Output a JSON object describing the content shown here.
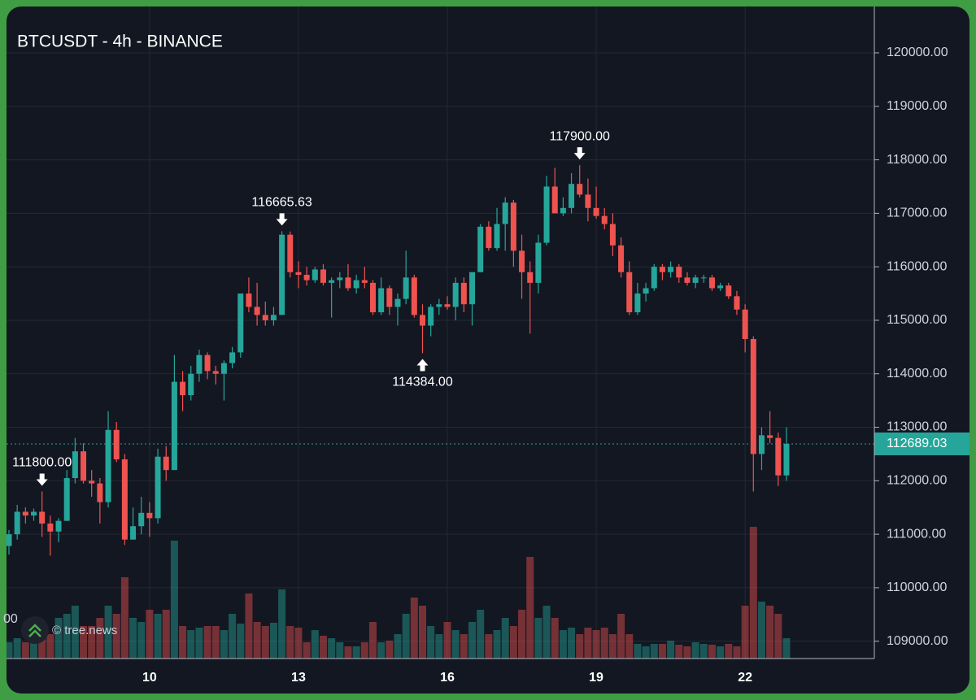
{
  "chart_data": {
    "type": "candlestick",
    "title": "BTCUSDT - 4h - BINANCE",
    "watermark": "© tree.news",
    "edge_fragment": "00",
    "categories": [
      null,
      null,
      null,
      null,
      null,
      null,
      null,
      null,
      null,
      null,
      null,
      null,
      null,
      null,
      null,
      null,
      null,
      "10",
      null,
      null,
      null,
      null,
      null,
      null,
      null,
      null,
      null,
      null,
      null,
      null,
      null,
      null,
      null,
      null,
      null,
      "13",
      null,
      null,
      null,
      null,
      null,
      null,
      null,
      null,
      null,
      null,
      null,
      null,
      null,
      null,
      null,
      null,
      null,
      "16",
      null,
      null,
      null,
      null,
      null,
      null,
      null,
      null,
      null,
      null,
      null,
      null,
      null,
      null,
      null,
      null,
      null,
      "19",
      null,
      null,
      null,
      null,
      null,
      null,
      null,
      null,
      null,
      null,
      null,
      null,
      null,
      null,
      null,
      null,
      null,
      "22",
      null,
      null,
      null,
      null,
      null
    ],
    "open": [
      110780,
      111000,
      111420,
      111350,
      111420,
      111200,
      111050,
      111250,
      112050,
      112550,
      112000,
      111950,
      111600,
      112950,
      112400,
      110900,
      111150,
      111400,
      111300,
      112450,
      112200,
      113850,
      113600,
      114000,
      114350,
      114050,
      114000,
      114200,
      114400,
      115500,
      115250,
      115100,
      115000,
      115100,
      116600,
      115900,
      115850,
      115750,
      115950,
      115700,
      115750,
      115800,
      115600,
      115750,
      115700,
      115150,
      115600,
      115250,
      115400,
      115800,
      115100,
      114900,
      115250,
      115300,
      115250,
      115700,
      115300,
      115900,
      116750,
      116350,
      116800,
      117200,
      116300,
      115900,
      115700,
      116450,
      117500,
      117000,
      117100,
      117550,
      117350,
      117100,
      116950,
      116800,
      116400,
      115900,
      115150,
      115500,
      115600,
      116000,
      115900,
      116000,
      115800,
      115700,
      115800,
      115800,
      115600,
      115650,
      115450,
      115200,
      114650,
      112500,
      112850,
      112800,
      112100
    ],
    "high": [
      111080,
      111550,
      111500,
      111480,
      111800,
      111350,
      111300,
      112200,
      112800,
      112700,
      112200,
      112050,
      113300,
      113100,
      112500,
      111500,
      111700,
      111600,
      112600,
      112650,
      114350,
      114050,
      114150,
      114450,
      114400,
      114150,
      114250,
      114500,
      115500,
      115800,
      115700,
      115350,
      115250,
      116665.63,
      116660,
      116100,
      116000,
      116000,
      116050,
      115800,
      115900,
      116050,
      115850,
      116000,
      115750,
      115800,
      115650,
      115500,
      116300,
      115850,
      115300,
      115300,
      115400,
      115450,
      115800,
      115800,
      115900,
      116800,
      116850,
      117100,
      117300,
      117250,
      116600,
      116100,
      116600,
      117700,
      117850,
      117300,
      117750,
      117900,
      117650,
      117500,
      117100,
      117000,
      116550,
      116100,
      115700,
      115700,
      116050,
      116050,
      116100,
      116050,
      115900,
      115850,
      115850,
      115850,
      115700,
      115700,
      115550,
      115300,
      114700,
      113000,
      113300,
      112900,
      113000
    ],
    "low": [
      110620,
      110900,
      111200,
      111250,
      110950,
      110600,
      110850,
      111250,
      111950,
      111950,
      111700,
      111200,
      111500,
      112350,
      110800,
      110900,
      111000,
      110950,
      111200,
      112000,
      112200,
      113300,
      113500,
      113850,
      113900,
      113800,
      113500,
      114100,
      114300,
      115150,
      114900,
      114900,
      114900,
      115100,
      115800,
      115600,
      115650,
      115700,
      115650,
      115050,
      115600,
      115550,
      115500,
      115600,
      115100,
      115100,
      115100,
      114900,
      115300,
      115050,
      114384,
      114700,
      115100,
      115200,
      115000,
      115150,
      114900,
      115900,
      116300,
      116300,
      116300,
      116000,
      115400,
      114750,
      115500,
      116400,
      117000,
      116950,
      117000,
      117300,
      116850,
      116900,
      116700,
      116200,
      115800,
      115100,
      115100,
      115350,
      115550,
      115750,
      115800,
      115700,
      115650,
      115600,
      115700,
      115550,
      115550,
      115400,
      115100,
      114400,
      111800,
      112200,
      112700,
      111900,
      112000
    ],
    "close": [
      111000,
      111420,
      111350,
      111420,
      111200,
      111050,
      111250,
      112050,
      112550,
      112000,
      111950,
      111600,
      112950,
      112400,
      110900,
      111150,
      111400,
      111300,
      112450,
      112200,
      113850,
      113600,
      114000,
      114350,
      114050,
      114000,
      114200,
      114400,
      115500,
      115250,
      115100,
      115000,
      115100,
      116600,
      115900,
      115850,
      115750,
      115950,
      115700,
      115750,
      115800,
      115600,
      115750,
      115700,
      115150,
      115600,
      115250,
      115400,
      115800,
      115100,
      114900,
      115250,
      115300,
      115250,
      115700,
      115300,
      115900,
      116750,
      116350,
      116800,
      117200,
      116300,
      115900,
      115700,
      116450,
      117500,
      117000,
      117100,
      117550,
      117350,
      117100,
      116950,
      116800,
      116400,
      115900,
      115150,
      115500,
      115600,
      116000,
      115900,
      116000,
      115800,
      115700,
      115800,
      115800,
      115600,
      115650,
      115450,
      115200,
      114650,
      112500,
      112850,
      112800,
      112100,
      112689.03
    ],
    "volume": [
      1000,
      1250,
      1000,
      1000,
      2000,
      1500,
      2500,
      2750,
      3250,
      2000,
      2000,
      2500,
      3250,
      2750,
      5000,
      2500,
      2250,
      3000,
      2750,
      3000,
      7250,
      2000,
      1750,
      1900,
      2000,
      2000,
      1750,
      2750,
      2150,
      4000,
      2250,
      2000,
      2200,
      4250,
      2000,
      1900,
      1000,
      1750,
      1400,
      1250,
      1000,
      750,
      750,
      1000,
      2250,
      1000,
      1100,
      1500,
      2750,
      3750,
      3250,
      2000,
      1500,
      2250,
      1750,
      1500,
      2250,
      3000,
      1500,
      1750,
      2500,
      2000,
      3000,
      6250,
      2500,
      3250,
      2500,
      1750,
      1900,
      1500,
      1900,
      1750,
      1900,
      1500,
      2750,
      1500,
      900,
      750,
      900,
      900,
      1100,
      850,
      750,
      1000,
      900,
      850,
      750,
      900,
      750,
      3250,
      8100,
      3500,
      3250,
      2750,
      1250
    ],
    "up_color": "#26a69a",
    "down_color": "#ef5350",
    "ylim": [
      108676,
      120836
    ],
    "yticks": [
      {
        "value": 109000,
        "label": "109000.00"
      },
      {
        "value": 110000,
        "label": "110000.00"
      },
      {
        "value": 111000,
        "label": "111000.00"
      },
      {
        "value": 112000,
        "label": "112000.00"
      },
      {
        "value": 113000,
        "label": "113000.00"
      },
      {
        "value": 114000,
        "label": "114000.00"
      },
      {
        "value": 115000,
        "label": "115000.00"
      },
      {
        "value": 116000,
        "label": "116000.00"
      },
      {
        "value": 117000,
        "label": "117000.00"
      },
      {
        "value": 118000,
        "label": "118000.00"
      },
      {
        "value": 119000,
        "label": "119000.00"
      },
      {
        "value": 120000,
        "label": "120000.00"
      }
    ],
    "last_price": {
      "value": 112689.03,
      "label": "112689.03"
    },
    "annotations": [
      {
        "value": 116665.63,
        "label": "116665.63"
      },
      {
        "value": 114384,
        "label": "114384.00"
      },
      {
        "value": 117900,
        "label": "117900.00"
      },
      {
        "value": 111800,
        "label": "111800.00"
      }
    ],
    "grid": true
  }
}
